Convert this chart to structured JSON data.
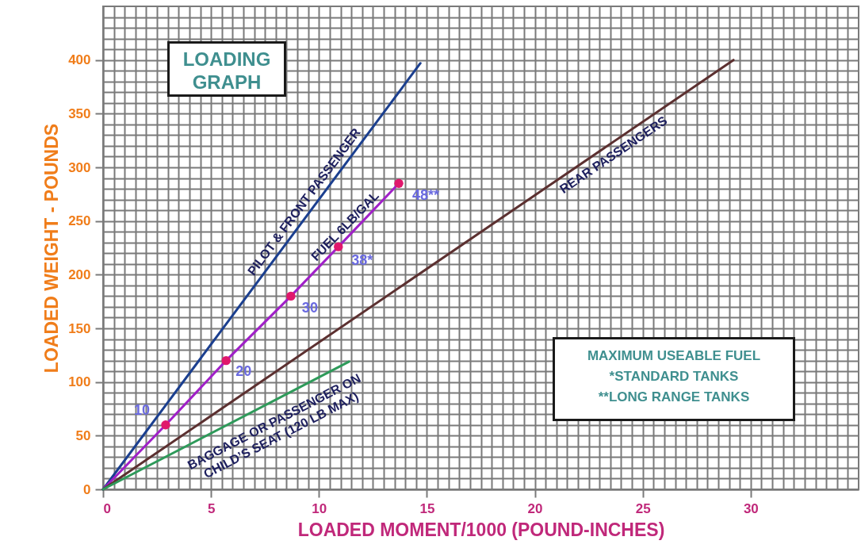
{
  "chart_data": {
    "type": "line",
    "title": "LOADING GRAPH",
    "xlabel": "LOADED MOMENT/1000 (POUND-INCHES)",
    "ylabel": "LOADED WEIGHT - POUNDS",
    "series": [
      {
        "name": "PILOT & FRONT PASSENGER",
        "color": "#1b3f8f",
        "x": [
          0,
          14.7
        ],
        "values": [
          0,
          397
        ]
      },
      {
        "name": "FUEL 6LB/GAL",
        "color": "#a020c8",
        "x": [
          0,
          2.9,
          5.7,
          8.7,
          10.9,
          13.7
        ],
        "values": [
          0,
          60,
          120,
          180,
          226,
          285
        ]
      },
      {
        "type": "scatter",
        "color": "#e0186c",
        "marker": "circle",
        "x": [
          2.9,
          5.7,
          8.7,
          10.9,
          13.7
        ],
        "values": [
          60,
          120,
          180,
          226,
          285
        ]
      },
      {
        "name": "REAR PASSENGERS",
        "color": "#5c3030",
        "x": [
          0,
          29.2
        ],
        "values": [
          0,
          400
        ]
      },
      {
        "name": "BAGGAGE OR PASSENGER ON CHILD’S SEAT (120 LB MAX)",
        "color": "#2e9a5a",
        "x": [
          0,
          11.4
        ],
        "values": [
          0,
          119
        ]
      }
    ],
    "annotations": [
      {
        "text": "10",
        "x": 2.9,
        "y": 60
      },
      {
        "text": "20",
        "x": 5.7,
        "y": 120
      },
      {
        "text": "30",
        "x": 8.7,
        "y": 180
      },
      {
        "text": "38*",
        "x": 10.9,
        "y": 226
      },
      {
        "text": "48**",
        "x": 13.7,
        "y": 285
      },
      "MAXIMUM USEABLE FUEL",
      "*STANDARD TANKS",
      "**LONG RANGE TANKS"
    ],
    "xlim": [
      0,
      35
    ],
    "ylim": [
      0,
      450
    ],
    "xticks": [
      0,
      {
        "value": 0.5,
        "label": null
      },
      {
        "value": 1,
        "label": null
      },
      {
        "value": 1.5,
        "label": null
      },
      {
        "value": 2,
        "label": null
      },
      {
        "value": 2.5,
        "label": null
      },
      {
        "value": 3,
        "label": null
      },
      {
        "value": 3.5,
        "label": null
      },
      {
        "value": 4,
        "label": null
      },
      {
        "value": 4.5,
        "label": null
      },
      5,
      {
        "value": 5.5,
        "label": null
      },
      {
        "value": 6,
        "label": null
      },
      {
        "value": 6.5,
        "label": null
      },
      {
        "value": 7,
        "label": null
      },
      {
        "value": 7.5,
        "label": null
      },
      {
        "value": 8,
        "label": null
      },
      {
        "value": 8.5,
        "label": null
      },
      {
        "value": 9,
        "label": null
      },
      {
        "value": 9.5,
        "label": null
      },
      10,
      {
        "value": 10.5,
        "label": null
      },
      {
        "value": 11,
        "label": null
      },
      {
        "value": 11.5,
        "label": null
      },
      {
        "value": 12,
        "label": null
      },
      {
        "value": 12.5,
        "label": null
      },
      {
        "value": 13,
        "label": null
      },
      {
        "value": 13.5,
        "label": null
      },
      {
        "value": 14,
        "label": null
      },
      {
        "value": 14.5,
        "label": null
      },
      15,
      {
        "value": 15.5,
        "label": null
      },
      {
        "value": 16,
        "label": null
      },
      {
        "value": 16.5,
        "label": null
      },
      {
        "value": 17,
        "label": null
      },
      {
        "value": 17.5,
        "label": null
      },
      {
        "value": 18,
        "label": null
      },
      {
        "value": 18.5,
        "label": null
      },
      {
        "value": 19,
        "label": null
      },
      {
        "value": 19.5,
        "label": null
      },
      20,
      {
        "value": 20.5,
        "label": null
      },
      {
        "value": 21,
        "label": null
      },
      {
        "value": 21.5,
        "label": null
      },
      {
        "value": 22,
        "label": null
      },
      {
        "value": 22.5,
        "label": null
      },
      {
        "value": 23,
        "label": null
      },
      {
        "value": 23.5,
        "label": null
      },
      {
        "value": 24,
        "label": null
      },
      {
        "value": 24.5,
        "label": null
      },
      25,
      {
        "value": 25.5,
        "label": null
      },
      {
        "value": 26,
        "label": null
      },
      {
        "value": 26.5,
        "label": null
      },
      {
        "value": 27,
        "label": null
      },
      {
        "value": 27.5,
        "label": null
      },
      {
        "value": 28,
        "label": null
      },
      {
        "value": 28.5,
        "label": null
      },
      {
        "value": 29,
        "label": null
      },
      {
        "value": 29.5,
        "label": null
      },
      30,
      {
        "value": 30.5,
        "label": null
      },
      {
        "value": 31,
        "label": null
      },
      {
        "value": 31.5,
        "label": null
      },
      {
        "value": 32,
        "label": null
      },
      {
        "value": 32.5,
        "label": null
      },
      {
        "value": 33,
        "label": null
      },
      {
        "value": 33.5,
        "label": null
      },
      {
        "value": 34,
        "label": null
      },
      {
        "value": 34.5,
        "label": null
      }
    ],
    "yticks": [
      0,
      {
        "value": 10,
        "label": null
      },
      {
        "value": 20,
        "label": null
      },
      {
        "value": 30,
        "label": null
      },
      {
        "value": 40,
        "label": null
      },
      50,
      {
        "value": 60,
        "label": null
      },
      {
        "value": 70,
        "label": null
      },
      {
        "value": 80,
        "label": null
      },
      {
        "value": 90,
        "label": null
      },
      100,
      {
        "value": 110,
        "label": null
      },
      {
        "value": 120,
        "label": null
      },
      {
        "value": 130,
        "label": null
      },
      {
        "value": 140,
        "label": null
      },
      150,
      {
        "value": 160,
        "label": null
      },
      {
        "value": 170,
        "label": null
      },
      {
        "value": 180,
        "label": null
      },
      {
        "value": 190,
        "label": null
      },
      200,
      {
        "value": 210,
        "label": null
      },
      {
        "value": 220,
        "label": null
      },
      {
        "value": 230,
        "label": null
      },
      {
        "value": 240,
        "label": null
      },
      250,
      {
        "value": 260,
        "label": null
      },
      {
        "value": 270,
        "label": null
      },
      {
        "value": 280,
        "label": null
      },
      {
        "value": 290,
        "label": null
      },
      300,
      {
        "value": 310,
        "label": null
      },
      {
        "value": 320,
        "label": null
      },
      {
        "value": 330,
        "label": null
      },
      {
        "value": 340,
        "label": null
      },
      350,
      {
        "value": 360,
        "label": null
      },
      {
        "value": 370,
        "label": null
      },
      {
        "value": 380,
        "label": null
      },
      {
        "value": 390,
        "label": null
      },
      400,
      {
        "value": 410,
        "label": null
      },
      {
        "value": 420,
        "label": null
      },
      {
        "value": 430,
        "label": null
      },
      {
        "value": 440,
        "label": null
      }
    ],
    "grid": true
  }
}
